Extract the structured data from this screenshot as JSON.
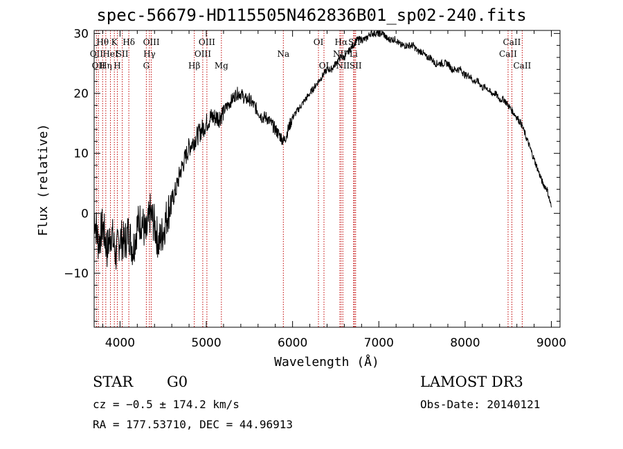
{
  "title": "spec-56679-HD115505N462836B01_sp02-240.fits",
  "info": {
    "object_class": "STAR",
    "subclass": "G0",
    "survey": "LAMOST DR3",
    "cz": "cz = −0.5 ± 174.2 km/s",
    "obs_date": "Obs-Date: 20140121",
    "coords": "RA = 177.53710, DEC =  44.96913"
  },
  "chart_data": {
    "type": "line",
    "title": "spec-56679-HD115505N462836B01_sp02-240.fits",
    "xlabel": "Wavelength (Å)",
    "ylabel": "Flux (relative)",
    "xlim": [
      3700,
      9100
    ],
    "ylim": [
      -19,
      30.5
    ],
    "xticks": [
      4000,
      5000,
      6000,
      7000,
      8000,
      9000
    ],
    "yticks": [
      -10,
      0,
      10,
      20,
      30
    ],
    "ytick_labels": [
      "−10",
      "0",
      "10",
      "20",
      "30"
    ],
    "series": [
      {
        "name": "flux",
        "x": [
          3700,
          3750,
          3800,
          3850,
          3900,
          3950,
          4000,
          4050,
          4100,
          4150,
          4200,
          4250,
          4300,
          4350,
          4400,
          4450,
          4500,
          4550,
          4600,
          4650,
          4700,
          4750,
          4800,
          4850,
          4900,
          4950,
          5000,
          5050,
          5100,
          5150,
          5200,
          5250,
          5300,
          5350,
          5400,
          5450,
          5500,
          5550,
          5600,
          5650,
          5700,
          5750,
          5800,
          5850,
          5900,
          5950,
          6000,
          6050,
          6100,
          6150,
          6200,
          6250,
          6300,
          6350,
          6400,
          6450,
          6500,
          6550,
          6600,
          6650,
          6700,
          6750,
          6800,
          6850,
          6900,
          6950,
          7000,
          7050,
          7100,
          7150,
          7200,
          7250,
          7300,
          7350,
          7400,
          7450,
          7500,
          7550,
          7600,
          7650,
          7700,
          7750,
          7800,
          7850,
          7900,
          7950,
          8000,
          8050,
          8100,
          8150,
          8200,
          8250,
          8300,
          8350,
          8400,
          8450,
          8500,
          8550,
          8600,
          8650,
          8700,
          8750,
          8800,
          8850,
          8900,
          8950,
          9000
        ],
        "y": [
          0,
          -5,
          -2,
          -6,
          -3,
          -7,
          -4,
          -5,
          -3,
          -6,
          -2,
          -1,
          -4,
          0,
          -2,
          -5,
          -3,
          0,
          2,
          4,
          7,
          9,
          11,
          12,
          13,
          14,
          15,
          16,
          16,
          16,
          17,
          18,
          19,
          20,
          20,
          19,
          19,
          18,
          17,
          16,
          16,
          15,
          14,
          13,
          12,
          14,
          16,
          17,
          18,
          19,
          20,
          21,
          22,
          23,
          24,
          24,
          25,
          26,
          26,
          27,
          28,
          29,
          29,
          29,
          30,
          30,
          30,
          30,
          29,
          29,
          29,
          28,
          28,
          28,
          28,
          27,
          27,
          26,
          26,
          25,
          25,
          25,
          25,
          24,
          24,
          24,
          23,
          23,
          22,
          22,
          21,
          21,
          20,
          20,
          19,
          19,
          18,
          17,
          16,
          15,
          13,
          11,
          9,
          7,
          5,
          4,
          1
        ]
      }
    ],
    "lines": [
      {
        "wave": 3727,
        "label": "OII",
        "row": 2
      },
      {
        "wave": 3750,
        "label": "OII",
        "row": 3
      },
      {
        "wave": 3798,
        "label": "Hθ",
        "row": 1
      },
      {
        "wave": 3835,
        "label": "Hη",
        "row": 3
      },
      {
        "wave": 3889,
        "label": "HeI",
        "row": 2
      },
      {
        "wave": 3934,
        "label": "K",
        "row": 1
      },
      {
        "wave": 3969,
        "label": "H",
        "row": 3
      },
      {
        "wave": 4026,
        "label": "SII",
        "row": 2
      },
      {
        "wave": 4102,
        "label": "Hδ",
        "row": 1
      },
      {
        "wave": 4305,
        "label": "G",
        "row": 3
      },
      {
        "wave": 4341,
        "label": "Hγ",
        "row": 2
      },
      {
        "wave": 4363,
        "label": "OIII",
        "row": 1
      },
      {
        "wave": 4861,
        "label": "Hβ",
        "row": 3
      },
      {
        "wave": 4959,
        "label": "OIII",
        "row": 2
      },
      {
        "wave": 5007,
        "label": "OIII",
        "row": 1
      },
      {
        "wave": 5175,
        "label": "Mg",
        "row": 3
      },
      {
        "wave": 5893,
        "label": "Na",
        "row": 2
      },
      {
        "wave": 6300,
        "label": "OI",
        "row": 1
      },
      {
        "wave": 6364,
        "label": "OI",
        "row": 3
      },
      {
        "wave": 6548,
        "label": "NII",
        "row": 2
      },
      {
        "wave": 6563,
        "label": "Hα",
        "row": 1
      },
      {
        "wave": 6583,
        "label": "NII",
        "row": 3
      },
      {
        "wave": 6707,
        "label": "Li",
        "row": 2
      },
      {
        "wave": 6717,
        "label": "SII",
        "row": 1
      },
      {
        "wave": 6731,
        "label": "SII",
        "row": 3
      },
      {
        "wave": 8498,
        "label": "CaII",
        "row": 2
      },
      {
        "wave": 8542,
        "label": "CaII",
        "row": 1
      },
      {
        "wave": 8662,
        "label": "CaII",
        "row": 3
      }
    ]
  }
}
